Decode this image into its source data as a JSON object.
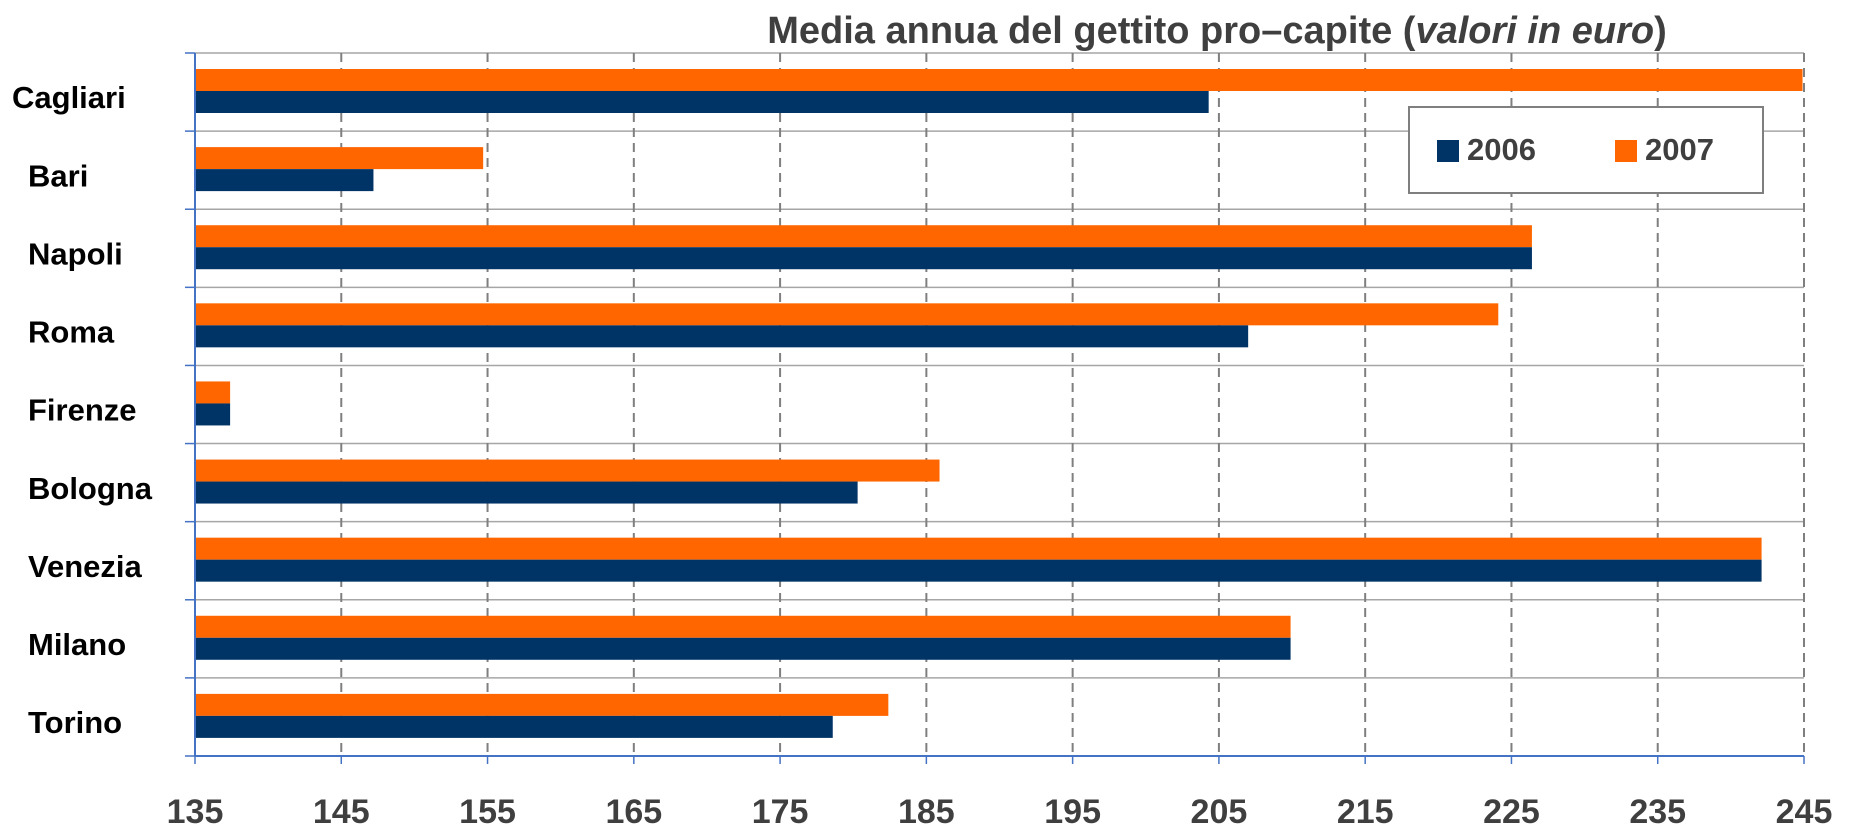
{
  "chart_data": {
    "type": "hbar",
    "title": [
      "Media annua del gettito pro–capite (",
      "valori in euro",
      ")"
    ],
    "categories": [
      "Cagliari",
      "Bari",
      "Napoli",
      "Roma",
      "Firenze",
      "Bologna",
      "Venezia",
      "Milano",
      "Torino"
    ],
    "series": [
      {
        "name": "2006",
        "color": "#003366",
        "values": [
          204.3,
          147.2,
          226.4,
          207,
          137.4,
          180.3,
          242.1,
          209.9,
          178.6
        ]
      },
      {
        "name": "2007",
        "color": "#ff6600",
        "values": [
          244.9,
          154.7,
          226.4,
          224.1,
          137.4,
          185.9,
          242.1,
          209.9,
          182.4
        ]
      }
    ],
    "xlim": [
      135,
      245
    ],
    "xticks": [
      135,
      145,
      155,
      165,
      175,
      185,
      195,
      205,
      215,
      225,
      235,
      245
    ],
    "grid": true,
    "legend": "top-right"
  }
}
